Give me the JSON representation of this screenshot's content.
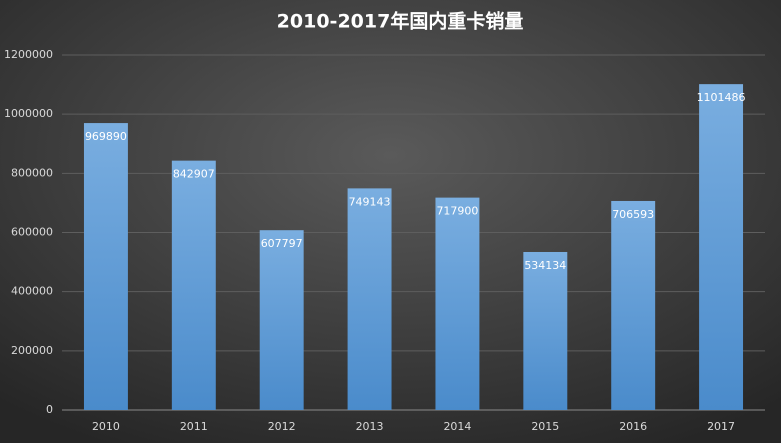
{
  "chart_data": {
    "type": "bar",
    "title": "2010-2017年国内重卡销量",
    "categories": [
      "2010",
      "2011",
      "2012",
      "2013",
      "2014",
      "2015",
      "2016",
      "2017"
    ],
    "values": [
      969890,
      842907,
      607797,
      749143,
      717900,
      534134,
      706593,
      1101486
    ],
    "color": "#5b9bd5",
    "ylim": [
      0,
      1200000
    ],
    "yticks": [
      0,
      200000,
      400000,
      600000,
      800000,
      1000000,
      1200000
    ],
    "grid": true
  }
}
